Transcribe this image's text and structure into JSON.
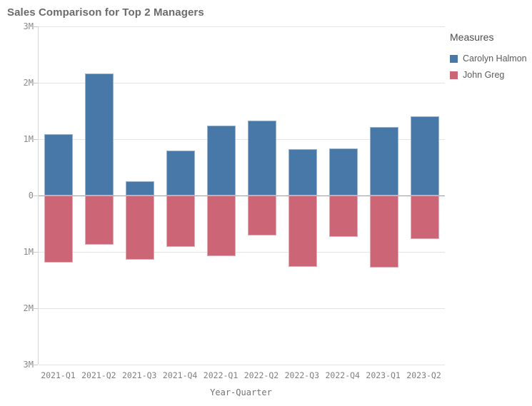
{
  "title": "Sales Comparison for Top 2 Managers",
  "legend": {
    "title": "Measures",
    "items": [
      {
        "label": "Carolyn Halmon",
        "color": "#4878a8"
      },
      {
        "label": "John Greg",
        "color": "#cc6677"
      }
    ]
  },
  "colors": {
    "series_blue": "#4878a8",
    "series_red": "#cc6677",
    "gridline": "#e3e3e3",
    "zero_line": "#9b9b9b",
    "axis_line": "#d6d6d6",
    "tick_text": "#8a8a8a",
    "title_text": "#6b6b6b",
    "background": "#ffffff"
  },
  "chart_data": {
    "type": "bar",
    "subtype": "diverging-vertical",
    "title": "Sales Comparison for Top 2 Managers",
    "xlabel": "Year-Quarter",
    "ylabel": "",
    "value_unit": "M",
    "ylim": [
      -3,
      3
    ],
    "grid": true,
    "legend_position": "right",
    "legend_title": "Measures",
    "categories": [
      "2021-Q1",
      "2021-Q2",
      "2021-Q3",
      "2021-Q4",
      "2022-Q1",
      "2022-Q2",
      "2022-Q3",
      "2022-Q4",
      "2023-Q1",
      "2023-Q2"
    ],
    "series": [
      {
        "name": "Carolyn Halmon",
        "color": "#4878a8",
        "direction": "up",
        "values": [
          1.09,
          2.16,
          0.25,
          0.8,
          1.24,
          1.33,
          0.82,
          0.84,
          1.22,
          1.41
        ]
      },
      {
        "name": "John Greg",
        "color": "#cc6677",
        "direction": "down",
        "values": [
          -1.19,
          -0.87,
          -1.14,
          -0.91,
          -1.08,
          -0.71,
          -1.27,
          -0.73,
          -1.28,
          -0.77
        ]
      }
    ],
    "y_ticks": [
      {
        "value": 3,
        "label": "3M"
      },
      {
        "value": 2,
        "label": "2M"
      },
      {
        "value": 1,
        "label": "1M"
      },
      {
        "value": 0,
        "label": "0"
      },
      {
        "value": -1,
        "label": "1M"
      },
      {
        "value": -2,
        "label": "2M"
      },
      {
        "value": -3,
        "label": "3M"
      }
    ]
  }
}
